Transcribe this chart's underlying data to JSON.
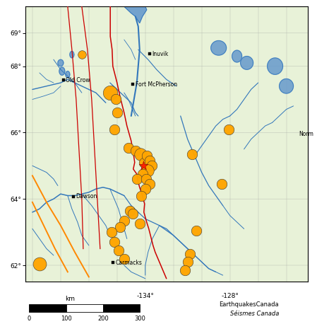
{
  "map_bg": "#e8f2d8",
  "fig_bg": "#ffffff",
  "xlim": [
    -142.5,
    -122.5
  ],
  "ylim": [
    61.5,
    69.8
  ],
  "figsize": [
    4.49,
    4.58
  ],
  "dpi": 100,
  "earthquakes": [
    {
      "lon": -138.5,
      "lat": 68.35,
      "r": 8
    },
    {
      "lon": -136.5,
      "lat": 67.2,
      "r": 14
    },
    {
      "lon": -136.1,
      "lat": 67.0,
      "r": 10
    },
    {
      "lon": -136.0,
      "lat": 66.6,
      "r": 10
    },
    {
      "lon": -136.2,
      "lat": 66.1,
      "r": 10
    },
    {
      "lon": -135.2,
      "lat": 65.55,
      "r": 10
    },
    {
      "lon": -134.7,
      "lat": 65.45,
      "r": 10
    },
    {
      "lon": -134.35,
      "lat": 65.35,
      "r": 12
    },
    {
      "lon": -134.1,
      "lat": 65.1,
      "r": 10
    },
    {
      "lon": -133.9,
      "lat": 65.3,
      "r": 10
    },
    {
      "lon": -133.7,
      "lat": 65.15,
      "r": 10
    },
    {
      "lon": -133.55,
      "lat": 65.0,
      "r": 10
    },
    {
      "lon": -133.85,
      "lat": 64.85,
      "r": 12
    },
    {
      "lon": -134.2,
      "lat": 64.75,
      "r": 10
    },
    {
      "lon": -134.6,
      "lat": 64.6,
      "r": 10
    },
    {
      "lon": -133.95,
      "lat": 64.6,
      "r": 10
    },
    {
      "lon": -133.7,
      "lat": 64.45,
      "r": 10
    },
    {
      "lon": -134.0,
      "lat": 64.3,
      "r": 10
    },
    {
      "lon": -134.3,
      "lat": 64.1,
      "r": 10
    },
    {
      "lon": -135.1,
      "lat": 63.65,
      "r": 10
    },
    {
      "lon": -135.5,
      "lat": 63.35,
      "r": 10
    },
    {
      "lon": -135.8,
      "lat": 63.15,
      "r": 10
    },
    {
      "lon": -134.9,
      "lat": 63.55,
      "r": 10
    },
    {
      "lon": -134.4,
      "lat": 63.25,
      "r": 10
    },
    {
      "lon": -136.4,
      "lat": 63.0,
      "r": 10
    },
    {
      "lon": -136.2,
      "lat": 62.7,
      "r": 10
    },
    {
      "lon": -135.9,
      "lat": 62.45,
      "r": 10
    },
    {
      "lon": -135.5,
      "lat": 62.2,
      "r": 10
    },
    {
      "lon": -130.7,
      "lat": 65.35,
      "r": 10
    },
    {
      "lon": -128.1,
      "lat": 66.1,
      "r": 10
    },
    {
      "lon": -128.6,
      "lat": 64.45,
      "r": 10
    },
    {
      "lon": -130.4,
      "lat": 63.05,
      "r": 10
    },
    {
      "lon": -130.85,
      "lat": 62.35,
      "r": 10
    },
    {
      "lon": -131.0,
      "lat": 62.1,
      "r": 10
    },
    {
      "lon": -131.2,
      "lat": 61.85,
      "r": 10
    },
    {
      "lon": -141.5,
      "lat": 62.05,
      "r": 13
    }
  ],
  "main_epicenter": {
    "lon": -134.15,
    "lat": 65.0
  },
  "eq_color": "#FFA500",
  "eq_edge": "#333333",
  "star_color": "#FF2200",
  "rivers_color": "#3377BB",
  "border_color": "#CC0000",
  "fault_red": "#CC0000",
  "fault_orange": "#FF8800",
  "grid_color": "#999999",
  "label_color": "#000000",
  "cities": [
    {
      "name": "Inuvik",
      "lon": -133.7,
      "lat": 68.37,
      "ha": "left",
      "sq": true
    },
    {
      "name": "Old Crow",
      "lon": -139.8,
      "lat": 67.58,
      "ha": "left",
      "sq": true
    },
    {
      "name": "Fort McPherson",
      "lon": -134.88,
      "lat": 67.45,
      "ha": "left",
      "sq": true
    },
    {
      "name": "Dawson",
      "lon": -139.1,
      "lat": 64.07,
      "ha": "left",
      "sq": true
    },
    {
      "name": "Carmacks",
      "lon": -136.3,
      "lat": 62.08,
      "ha": "left",
      "sq": true
    },
    {
      "name": "Norm",
      "lon": -123.3,
      "lat": 65.95,
      "ha": "left",
      "sq": false
    }
  ],
  "yticks": [
    62,
    64,
    66,
    68,
    69
  ],
  "ytick_labels": [
    "62°",
    "64°",
    "66°",
    "68°",
    "69°"
  ],
  "xtick_positions": [
    -134,
    -128
  ],
  "bottom_lon_labels": [
    [
      -134,
      "-134°"
    ],
    [
      -128,
      "-128°"
    ]
  ],
  "scale_ticks": [
    0,
    100,
    200,
    300
  ],
  "credit_line1": "EarthquakesCanada",
  "credit_line2": "Séismes Canada"
}
